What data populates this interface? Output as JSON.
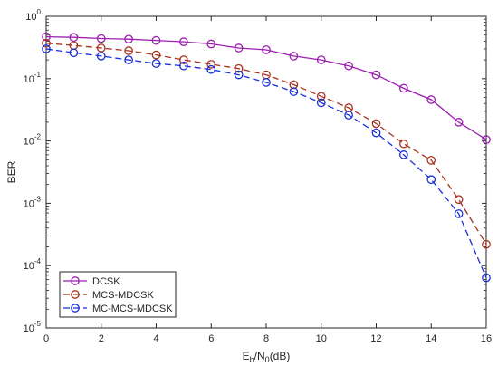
{
  "chart_data": {
    "type": "line",
    "title": "",
    "xlabel": {
      "base": "E",
      "sub1": "b",
      "mid": "/N",
      "sub2": "0",
      "tail": "(dB)"
    },
    "ylabel": "BER",
    "xlim": [
      0,
      16
    ],
    "ylim": [
      1e-05,
      1
    ],
    "yscale": "log",
    "grid": false,
    "legend_position": "bottom-left",
    "x": [
      0,
      1,
      2,
      3,
      4,
      5,
      6,
      7,
      8,
      9,
      10,
      11,
      12,
      13,
      14,
      15,
      16
    ],
    "x_ticks": [
      {
        "value": 0,
        "label": "0"
      },
      {
        "value": 2,
        "label": "2"
      },
      {
        "value": 4,
        "label": "4"
      },
      {
        "value": 6,
        "label": "6"
      },
      {
        "value": 8,
        "label": "8"
      },
      {
        "value": 10,
        "label": "10"
      },
      {
        "value": 12,
        "label": "12"
      },
      {
        "value": 14,
        "label": "14"
      },
      {
        "value": 16,
        "label": "16"
      }
    ],
    "y_ticks": [
      {
        "value": 1,
        "base": "10",
        "exp": "0"
      },
      {
        "value": 0.1,
        "base": "10",
        "exp": "-1"
      },
      {
        "value": 0.01,
        "base": "10",
        "exp": "-2"
      },
      {
        "value": 0.001,
        "base": "10",
        "exp": "-3"
      },
      {
        "value": 0.0001,
        "base": "10",
        "exp": "-4"
      },
      {
        "value": 1e-05,
        "base": "10",
        "exp": "-5"
      }
    ],
    "series": [
      {
        "name": "DCSK",
        "color": "#9b1fb0",
        "line_style": "solid",
        "values": [
          0.47,
          0.46,
          0.44,
          0.43,
          0.41,
          0.39,
          0.36,
          0.31,
          0.29,
          0.23,
          0.2,
          0.16,
          0.115,
          0.07,
          0.046,
          0.02,
          0.0105
        ]
      },
      {
        "name": "MCS-MDCSK",
        "color": "#a8321e",
        "line_style": "dashed",
        "values": [
          0.37,
          0.34,
          0.31,
          0.28,
          0.24,
          0.2,
          0.17,
          0.145,
          0.115,
          0.08,
          0.052,
          0.034,
          0.019,
          0.009,
          0.0049,
          0.00115,
          0.00022
        ]
      },
      {
        "name": "MC-MCS-MDCSK",
        "color": "#1a2fd6",
        "line_style": "dashed",
        "values": [
          0.3,
          0.26,
          0.23,
          0.2,
          0.175,
          0.16,
          0.14,
          0.115,
          0.087,
          0.062,
          0.041,
          0.026,
          0.0135,
          0.006,
          0.0024,
          0.00068,
          6.4e-05
        ]
      }
    ]
  }
}
